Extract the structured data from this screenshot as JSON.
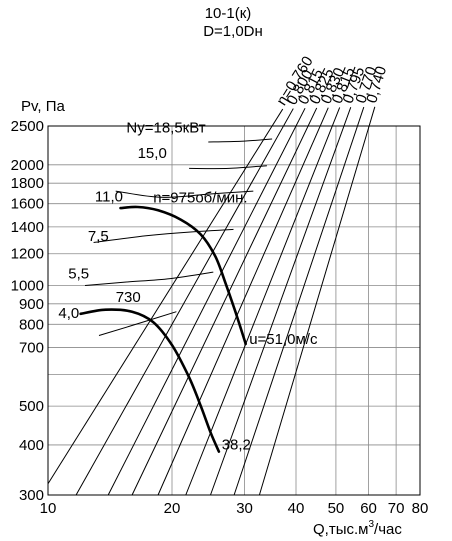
{
  "chart_data": {
    "type": "line",
    "title": "10-1(к)",
    "subtitle": "D=1,0Dн",
    "ylabel": "Pv, Па",
    "xlabel_prefix": "Q,тыс.м",
    "xlabel_sup": "3",
    "xlabel_suffix": "/час",
    "xscale": "log",
    "yscale": "log",
    "xlim": [
      10,
      80
    ],
    "ylim": [
      300,
      2500
    ],
    "grid": true,
    "legend": "none",
    "x_ticks": [
      {
        "value": 10,
        "label": "10"
      },
      {
        "value": 20,
        "label": "20"
      },
      {
        "value": 30,
        "label": "30"
      },
      {
        "value": 40,
        "label": "40"
      },
      {
        "value": 50,
        "label": "50"
      },
      {
        "value": 60,
        "label": "60"
      },
      {
        "value": 70,
        "label": "70"
      },
      {
        "value": 80,
        "label": "80"
      }
    ],
    "x_grid": [
      10,
      20,
      30,
      40,
      50,
      60,
      70,
      80
    ],
    "y_ticks": [
      {
        "value": 2500,
        "label": "2500"
      },
      {
        "value": 2000,
        "label": "2000"
      },
      {
        "value": 1800,
        "label": "1800"
      },
      {
        "value": 1600,
        "label": "1600"
      },
      {
        "value": 1400,
        "label": "1400"
      },
      {
        "value": 1200,
        "label": "1200"
      },
      {
        "value": 1000,
        "label": "1000"
      },
      {
        "value": 900,
        "label": "900"
      },
      {
        "value": 800,
        "label": "800"
      },
      {
        "value": 700,
        "label": "700"
      },
      {
        "value": 500,
        "label": "500"
      },
      {
        "value": 400,
        "label": "400"
      },
      {
        "value": 300,
        "label": "300"
      }
    ],
    "y_grid": [
      300,
      400,
      500,
      600,
      700,
      800,
      900,
      1000,
      1200,
      1400,
      1600,
      1800,
      2000,
      2500
    ],
    "efficiency_lines": [
      {
        "label": "η=0,760",
        "x": [
          10.0,
          35.0
        ],
        "y": [
          320,
          2500
        ]
      },
      {
        "label": "0,800",
        "x": [
          11.7,
          37.3
        ],
        "y": [
          300,
          2500
        ]
      },
      {
        "label": "0,815",
        "x": [
          14.0,
          40.0
        ],
        "y": [
          300,
          2500
        ]
      },
      {
        "label": "0,825",
        "x": [
          16.0,
          42.8
        ],
        "y": [
          300,
          2500
        ]
      },
      {
        "label": "0,830",
        "x": [
          18.5,
          45.8
        ],
        "y": [
          300,
          2500
        ]
      },
      {
        "label": "0,815",
        "x": [
          21.6,
          49.0
        ],
        "y": [
          300,
          2500
        ]
      },
      {
        "label": "0,795",
        "x": [
          24.8,
          52.3
        ],
        "y": [
          300,
          2500
        ]
      },
      {
        "label": "0,770",
        "x": [
          28.3,
          56.4
        ],
        "y": [
          300,
          2500
        ]
      },
      {
        "label": "0,740",
        "x": [
          32.6,
          60.2
        ],
        "y": [
          300,
          2500
        ]
      }
    ],
    "series": [
      {
        "name": "n=975об/мин.",
        "x": [
          15.0,
          16.5,
          18.5,
          21.0,
          23.5,
          25.5,
          27.0,
          28.5,
          30.2
        ],
        "y": [
          1560,
          1570,
          1540,
          1460,
          1340,
          1180,
          1010,
          860,
          715
        ]
      },
      {
        "name": "730",
        "x": [
          12.0,
          13.8,
          16.0,
          18.0,
          20.0,
          22.0,
          23.5,
          24.8,
          26.0
        ],
        "y": [
          850,
          870,
          860,
          810,
          710,
          590,
          500,
          430,
          385
        ]
      }
    ],
    "power_arcs": [
      {
        "label": "4,0",
        "x": [
          13.3,
          15.7,
          20.5
        ],
        "y": [
          750,
          790,
          860
        ]
      },
      {
        "label": "5,5",
        "x": [
          12.3,
          15.5,
          19.8,
          25.2
        ],
        "y": [
          1000,
          1020,
          1040,
          1080
        ]
      },
      {
        "label": "7,5",
        "x": [
          12.9,
          17.3,
          22.2,
          28.2
        ],
        "y": [
          1280,
          1330,
          1360,
          1380
        ]
      },
      {
        "label": "11,0",
        "x": [
          14.6,
          18.8,
          24.5,
          31.5
        ],
        "y": [
          1720,
          1660,
          1690,
          1720
        ]
      },
      {
        "label": "15,0",
        "x": [
          22.0,
          27.5,
          34.0
        ],
        "y": [
          1960,
          1960,
          1990
        ]
      },
      {
        "label": "Ny=18,5кВт",
        "x": [
          24.5,
          29.5,
          35.0
        ],
        "y": [
          2280,
          2290,
          2320
        ]
      }
    ],
    "annotations": [
      {
        "text": "Ny=18,5кВт",
        "x": 15.5,
        "y": 2410
      },
      {
        "text": "15,0",
        "x": 16.5,
        "y": 2080
      },
      {
        "text": "11,0",
        "x": 13.0,
        "y": 1620
      },
      {
        "text": "n=975об/мин.",
        "x": 18.0,
        "y": 1610
      },
      {
        "text": "7,5",
        "x": 12.5,
        "y": 1290
      },
      {
        "text": "5,5",
        "x": 11.2,
        "y": 1040
      },
      {
        "text": "730",
        "x": 14.6,
        "y": 910
      },
      {
        "text": "4,0",
        "x": 10.6,
        "y": 830
      },
      {
        "text": "u=51,0м/с",
        "x": 30.8,
        "y": 715
      },
      {
        "text": "38,2",
        "x": 26.4,
        "y": 390
      }
    ]
  }
}
